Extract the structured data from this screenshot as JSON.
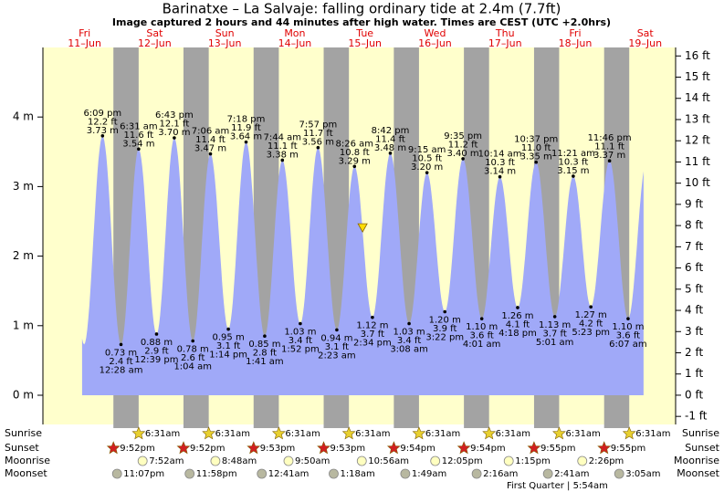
{
  "chart_data": {
    "type": "area",
    "title": "Barinatxe – La Salvaje: falling  ordinary tide at 2.4m (7.7ft)",
    "subtitle": "Image captured 2 hours and 44 minutes after high water. Times are CEST (UTC +2.0hrs)",
    "day_names": [
      "Fri",
      "Sat",
      "Sun",
      "Mon",
      "Tue",
      "Wed",
      "Thu",
      "Fri",
      "Sat"
    ],
    "categories": [
      "11–Jun",
      "12–Jun",
      "13–Jun",
      "14–Jun",
      "15–Jun",
      "16–Jun",
      "17–Jun",
      "18–Jun",
      "19–Jun"
    ],
    "xlim": [
      -2.27,
      214.4
    ],
    "ylim": [
      -0.42,
      5.0
    ],
    "yticks": [
      {
        "value": 0,
        "label": "0 m"
      },
      {
        "value": 1,
        "label": "1 m"
      },
      {
        "value": 2,
        "label": "2 m"
      },
      {
        "value": 3,
        "label": "3 m"
      },
      {
        "value": 4,
        "label": "4 m"
      }
    ],
    "y2lim": [
      -1.38,
      16.4
    ],
    "y2ticks": [
      {
        "value": 16,
        "label": "16 ft"
      },
      {
        "value": 15,
        "label": "15 ft"
      },
      {
        "value": 14,
        "label": "14 ft"
      },
      {
        "value": 13,
        "label": "13 ft"
      },
      {
        "value": 12,
        "label": "12 ft"
      },
      {
        "value": 11,
        "label": "11 ft"
      },
      {
        "value": 10,
        "label": "10 ft"
      },
      {
        "value": 9,
        "label": "9 ft"
      },
      {
        "value": 8,
        "label": "8 ft"
      },
      {
        "value": 7,
        "label": "7 ft"
      },
      {
        "value": 6,
        "label": "6 ft"
      },
      {
        "value": 5,
        "label": "5 ft"
      },
      {
        "value": 4,
        "label": "4 ft"
      },
      {
        "value": 3,
        "label": "3 ft"
      },
      {
        "value": 2,
        "label": "2 ft"
      },
      {
        "value": 1,
        "label": "1 ft"
      },
      {
        "value": 0,
        "label": "0 ft"
      },
      {
        "value": -1,
        "label": "-1 ft"
      }
    ],
    "color": "#a0a9f8",
    "day_color": "#ffffcc",
    "night_color": "#a3a3a3",
    "x": [
      18.15,
      24.47,
      30.52,
      36.65,
      42.72,
      49.07,
      55.1,
      61.23,
      67.3,
      73.68,
      79.73,
      85.87,
      91.95,
      98.38,
      104.43,
      110.57,
      116.7,
      123.13,
      129.25,
      135.37,
      141.58,
      148.02,
      154.23,
      160.3,
      166.62,
      173.02,
      179.35,
      185.38,
      191.77,
      198.12
    ],
    "values": [
      3.73,
      0.73,
      3.54,
      0.88,
      3.7,
      0.78,
      3.47,
      0.95,
      3.64,
      0.85,
      3.38,
      1.03,
      3.56,
      0.94,
      3.29,
      1.12,
      3.48,
      1.03,
      3.2,
      1.2,
      3.4,
      1.1,
      3.14,
      1.26,
      3.35,
      1.13,
      3.15,
      1.27,
      3.37,
      1.1
    ],
    "value_labels": [
      "3.73 m",
      "0.73 m",
      "3.54 m",
      "0.88 m",
      "3.70 m",
      "0.78 m",
      "3.47 m",
      "0.95 m",
      "3.64 m",
      "0.85 m",
      "3.38 m",
      "1.03 m",
      "3.56 m",
      "0.94 m",
      "3.29 m",
      "1.12 m",
      "3.48 m",
      "1.03 m",
      "3.20 m",
      "1.20 m",
      "3.40 m",
      "1.10 m",
      "3.14 m",
      "1.26 m",
      "3.35 m",
      "1.13 m",
      "3.15 m",
      "1.27 m",
      "3.37 m",
      "1.10 m"
    ],
    "ft_labels": [
      "12.2 ft",
      "2.4 ft",
      "11.6 ft",
      "2.9 ft",
      "12.1 ft",
      "2.6 ft",
      "11.4 ft",
      "3.1 ft",
      "11.9 ft",
      "2.8 ft",
      "11.1 ft",
      "3.4 ft",
      "11.7 ft",
      "3.1 ft",
      "10.8 ft",
      "3.7 ft",
      "11.4 ft",
      "3.4 ft",
      "10.5 ft",
      "3.9 ft",
      "11.2 ft",
      "3.6 ft",
      "10.3 ft",
      "4.1 ft",
      "11.0 ft",
      "3.7 ft",
      "10.3 ft",
      "4.2 ft",
      "11.1 ft",
      "3.6 ft"
    ],
    "times": [
      "6:09 pm",
      "12:28 am",
      "6:31 am",
      "12:39 pm",
      "6:43 pm",
      "1:04 am",
      "7:06 am",
      "1:14 pm",
      "7:18 pm",
      "1:41 am",
      "7:44 am",
      "1:52 pm",
      "7:57 pm",
      "2:23 am",
      "8:26 am",
      "2:34 pm",
      "8:42 pm",
      "3:08 am",
      "9:15 am",
      "3:22 pm",
      "9:35 pm",
      "4:01 am",
      "10:14 am",
      "4:18 pm",
      "10:37 pm",
      "5:01 am",
      "11:21 am",
      "5:23 pm",
      "11:46 pm",
      "6:07 am"
    ],
    "now": {
      "x": 107.2,
      "value": 2.4
    },
    "sunrise": {
      "label": "Sunrise",
      "x": [
        30.52,
        54.52,
        78.52,
        102.52,
        126.52,
        150.52,
        174.52,
        198.52
      ],
      "labels": [
        "6:31am",
        "6:31am",
        "6:31am",
        "6:31am",
        "6:31am",
        "6:31am",
        "6:31am",
        "6:31am"
      ]
    },
    "sunset": {
      "label": "Sunset",
      "x": [
        21.87,
        45.87,
        69.88,
        93.88,
        117.9,
        141.9,
        165.92,
        189.92
      ],
      "labels": [
        "9:52pm",
        "9:52pm",
        "9:53pm",
        "9:53pm",
        "9:54pm",
        "9:54pm",
        "9:55pm",
        "9:55pm"
      ]
    },
    "moonrise": {
      "label": "Moonrise",
      "x": [
        31.87,
        56.8,
        81.83,
        106.93,
        132.08,
        157.25,
        182.43
      ],
      "labels": [
        "7:52am",
        "8:48am",
        "9:50am",
        "10:56am",
        "12:05pm",
        "1:15pm",
        "2:26pm"
      ]
    },
    "moonset": {
      "label": "Moonset",
      "x": [
        23.12,
        47.97,
        72.68,
        97.3,
        121.82,
        146.27,
        170.68,
        195.08
      ],
      "labels": [
        "11:07pm",
        "11:58pm",
        "12:41am",
        "1:18am",
        "1:49am",
        "2:16am",
        "2:41am",
        "3:05am"
      ]
    },
    "moon_phase": {
      "x": 173.9,
      "label": "First Quarter | 5:54am"
    }
  }
}
